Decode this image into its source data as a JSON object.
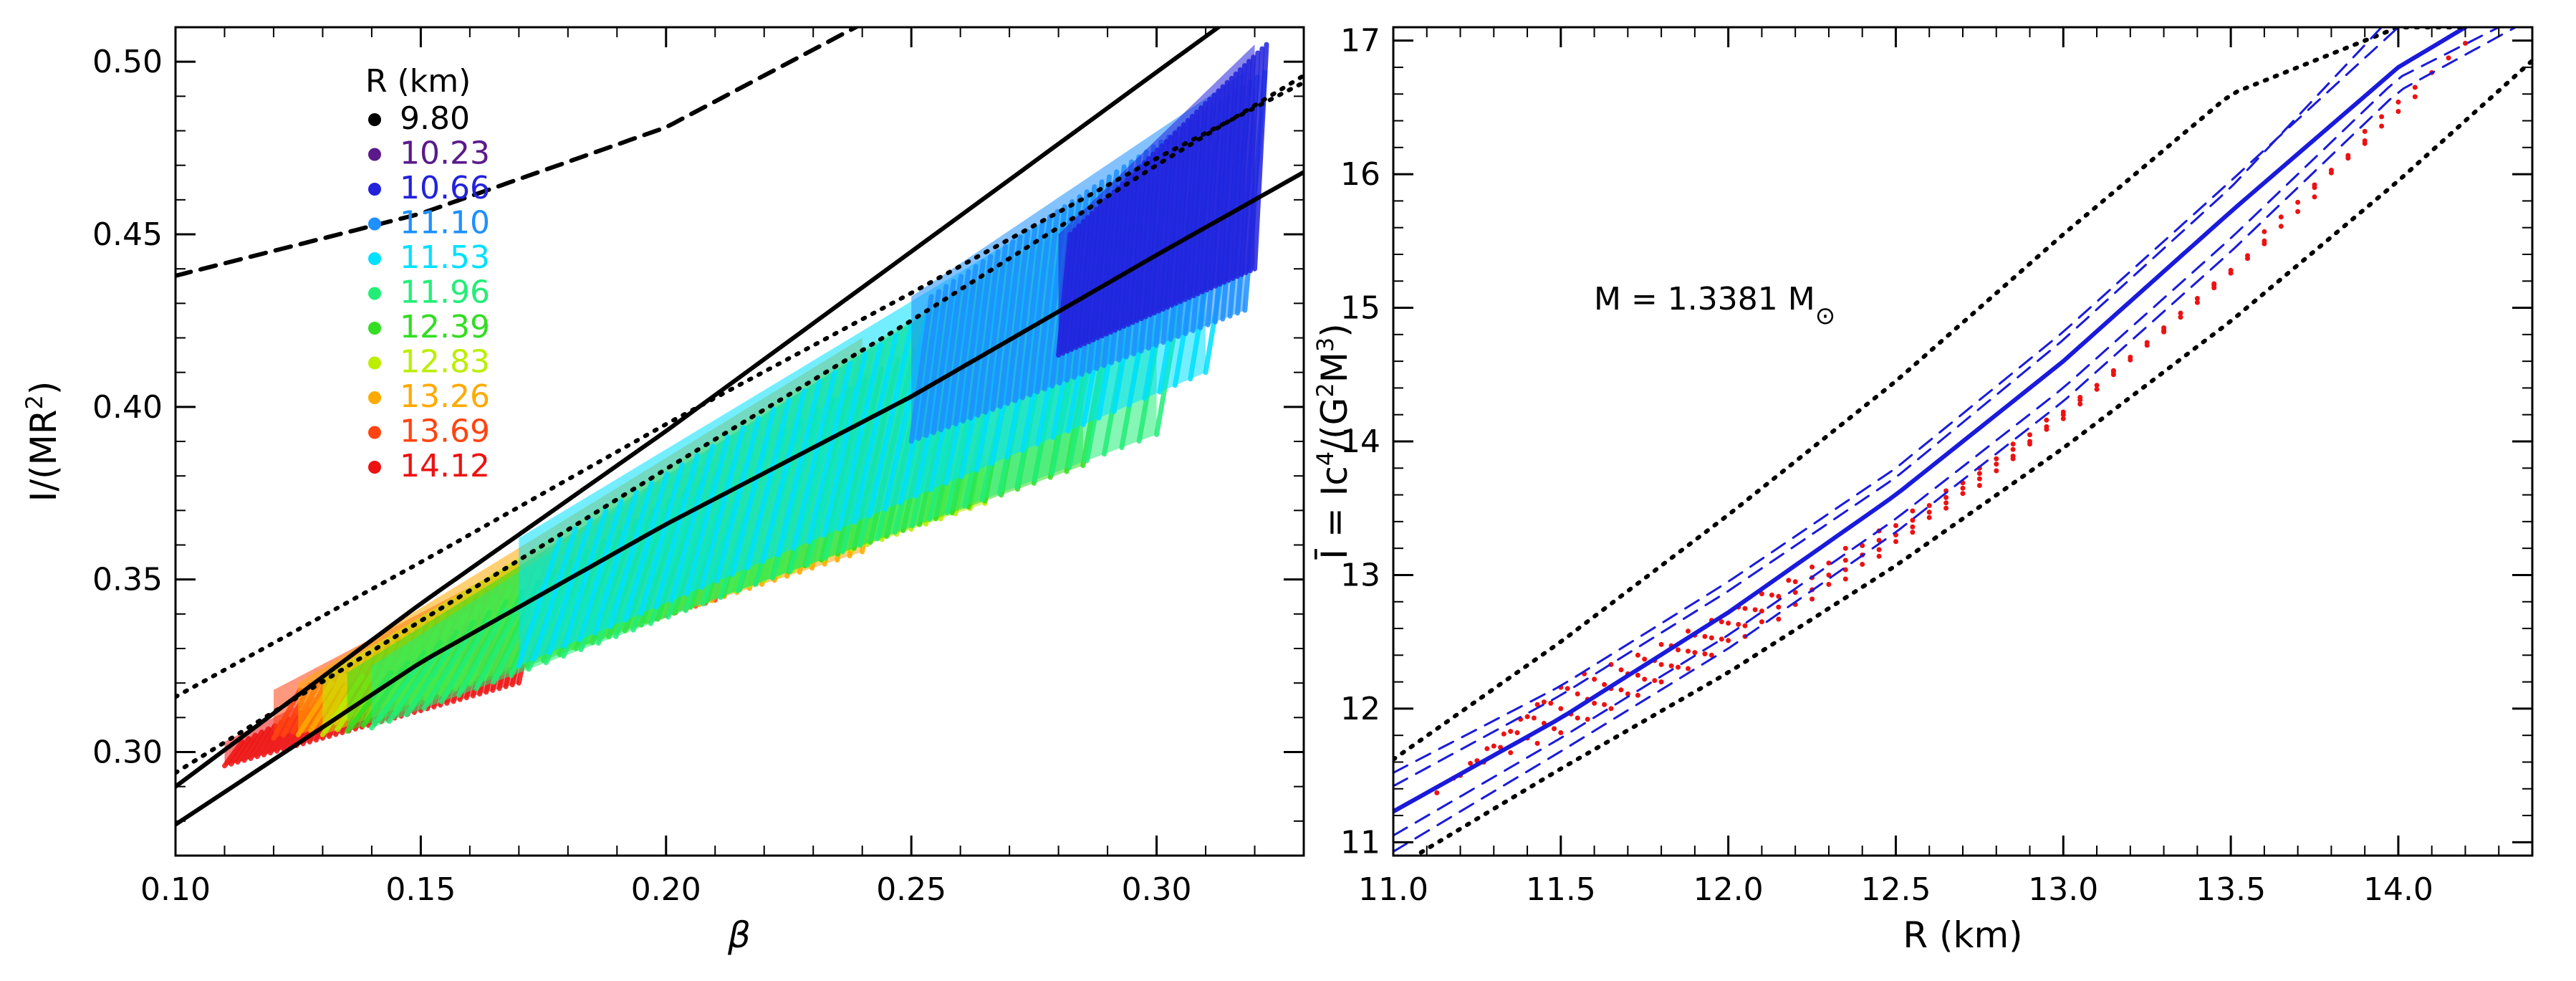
{
  "figure": {
    "label": "figure-two-panel-rotation-relations"
  },
  "chart_data": [
    {
      "type": "scatter",
      "panel": "left",
      "xlabel": "β",
      "ylabel": "I/(MR²)",
      "ylabel_text": "I/(MR",
      "ylabel_sup": "2",
      "ylabel_end": ")",
      "xlim": [
        0.1,
        0.33
      ],
      "ylim": [
        0.27,
        0.51
      ],
      "xticks": [
        0.1,
        0.15,
        0.2,
        0.25,
        0.3
      ],
      "xtick_labels": [
        "0.10",
        "0.15",
        "0.20",
        "0.25",
        "0.30"
      ],
      "yticks": [
        0.3,
        0.35,
        0.4,
        0.45,
        0.5
      ],
      "ytick_labels": [
        "0.30",
        "0.35",
        "0.40",
        "0.45",
        "0.50"
      ],
      "legend": {
        "title": "R (km)",
        "position": "top-left",
        "entries": [
          {
            "label": "9.80",
            "color": "#000000"
          },
          {
            "label": "10.23",
            "color": "#5a1a8c"
          },
          {
            "label": "10.66",
            "color": "#2222dd"
          },
          {
            "label": "11.10",
            "color": "#1e90ff"
          },
          {
            "label": "11.53",
            "color": "#00e0ff"
          },
          {
            "label": "11.96",
            "color": "#22ee77"
          },
          {
            "label": "12.39",
            "color": "#33dd22"
          },
          {
            "label": "12.83",
            "color": "#bbee00"
          },
          {
            "label": "13.26",
            "color": "#ffaa00"
          },
          {
            "label": "13.69",
            "color": "#ff4411"
          },
          {
            "label": "14.12",
            "color": "#ee1111"
          }
        ]
      },
      "curves": [
        {
          "name": "upper-solid-bound",
          "style": "solid",
          "x": [
            0.1,
            0.15,
            0.2,
            0.25,
            0.3,
            0.33
          ],
          "y": [
            0.29,
            0.343,
            0.393,
            0.445,
            0.497,
            0.528
          ]
        },
        {
          "name": "lower-solid-bound",
          "style": "solid",
          "x": [
            0.1,
            0.15,
            0.2,
            0.25,
            0.3,
            0.33
          ],
          "y": [
            0.279,
            0.326,
            0.366,
            0.403,
            0.444,
            0.468
          ]
        },
        {
          "name": "upper-dotted",
          "style": "dotted",
          "x": [
            0.1,
            0.15,
            0.2,
            0.25,
            0.3,
            0.33
          ],
          "y": [
            0.316,
            0.355,
            0.395,
            0.433,
            0.472,
            0.494
          ]
        },
        {
          "name": "lower-dotted",
          "style": "dotted",
          "x": [
            0.1,
            0.15,
            0.2,
            0.25,
            0.3,
            0.33
          ],
          "y": [
            0.294,
            0.338,
            0.382,
            0.425,
            0.47,
            0.496
          ]
        },
        {
          "name": "dashed-curve",
          "style": "dashed",
          "x": [
            0.1,
            0.15,
            0.2,
            0.24
          ],
          "y": [
            0.438,
            0.456,
            0.481,
            0.511
          ]
        }
      ],
      "bands": [
        {
          "color": "#ee1111",
          "x": [
            0.11,
            0.17
          ],
          "lower": [
            0.296,
            0.32
          ],
          "upper": [
            0.303,
            0.345
          ]
        },
        {
          "color": "#ff4411",
          "x": [
            0.12,
            0.21
          ],
          "lower": [
            0.304,
            0.344
          ],
          "upper": [
            0.318,
            0.385
          ]
        },
        {
          "color": "#ffaa00",
          "x": [
            0.125,
            0.24
          ],
          "lower": [
            0.305,
            0.358
          ],
          "upper": [
            0.32,
            0.42
          ]
        },
        {
          "color": "#bbee00",
          "x": [
            0.13,
            0.265
          ],
          "lower": [
            0.305,
            0.372
          ],
          "upper": [
            0.322,
            0.438
          ]
        },
        {
          "color": "#33dd22",
          "x": [
            0.135,
            0.285
          ],
          "lower": [
            0.306,
            0.383
          ],
          "upper": [
            0.323,
            0.455
          ]
        },
        {
          "color": "#22ee77",
          "x": [
            0.14,
            0.3
          ],
          "lower": [
            0.307,
            0.392
          ],
          "upper": [
            0.325,
            0.47
          ]
        },
        {
          "color": "#00e0ff",
          "x": [
            0.17,
            0.31
          ],
          "lower": [
            0.325,
            0.41
          ],
          "upper": [
            0.362,
            0.482
          ]
        },
        {
          "color": "#1e90ff",
          "x": [
            0.25,
            0.318
          ],
          "lower": [
            0.39,
            0.428
          ],
          "upper": [
            0.432,
            0.497
          ]
        },
        {
          "color": "#2222dd",
          "x": [
            0.28,
            0.32
          ],
          "lower": [
            0.415,
            0.44
          ],
          "upper": [
            0.45,
            0.505
          ]
        }
      ]
    },
    {
      "type": "line",
      "panel": "right",
      "xlabel": "R (km)",
      "ylabel": "Ī = Ic⁴/(G²M³)",
      "ylabel_parts": [
        "Ī = Ic",
        "4",
        "/(G",
        "2",
        "M",
        "3",
        ")"
      ],
      "xlim": [
        11.0,
        14.4
      ],
      "ylim": [
        10.9,
        17.1
      ],
      "xticks": [
        11.0,
        11.5,
        12.0,
        12.5,
        13.0,
        13.5,
        14.0
      ],
      "xtick_labels": [
        "11.0",
        "11.5",
        "12.0",
        "12.5",
        "13.0",
        "13.5",
        "14.0"
      ],
      "yticks": [
        11,
        12,
        13,
        14,
        15,
        16,
        17
      ],
      "ytick_labels": [
        "11",
        "12",
        "13",
        "14",
        "15",
        "16",
        "17"
      ],
      "annotation": {
        "text": "M = 1.3381 M",
        "sub": "⊙"
      },
      "series": [
        {
          "name": "central-fit",
          "style": "solid",
          "color": "#1a1adb",
          "x": [
            11.0,
            11.5,
            12.0,
            12.5,
            13.0,
            13.5,
            14.0,
            14.2
          ],
          "y": [
            11.23,
            11.93,
            12.72,
            13.6,
            14.6,
            15.72,
            16.8,
            17.1
          ]
        },
        {
          "name": "upper-dotted",
          "style": "dotted",
          "color": "#000000",
          "x": [
            11.0,
            11.5,
            12.0,
            12.5,
            13.0,
            13.5,
            14.0,
            14.2
          ],
          "y": [
            11.62,
            12.5,
            13.45,
            14.45,
            15.55,
            16.6,
            17.1,
            17.1
          ]
        },
        {
          "name": "lower-dotted",
          "style": "dotted",
          "color": "#000000",
          "x": [
            11.0,
            11.5,
            12.0,
            12.5,
            13.0,
            13.5,
            14.0,
            14.4
          ],
          "y": [
            10.8,
            11.55,
            12.27,
            13.07,
            13.95,
            14.9,
            15.95,
            16.85
          ]
        },
        {
          "name": "upper-dashed-1",
          "style": "dashed",
          "color": "#1a1adb",
          "x": [
            11.0,
            11.5,
            12.0,
            12.5,
            13.0,
            13.5,
            14.0
          ],
          "y": [
            11.52,
            12.17,
            12.95,
            13.8,
            14.82,
            15.95,
            17.1
          ]
        },
        {
          "name": "upper-dashed-2",
          "style": "dashed",
          "color": "#1a1adb",
          "x": [
            11.0,
            11.5,
            12.0,
            12.5,
            13.0,
            13.5,
            13.95
          ],
          "y": [
            11.42,
            12.1,
            12.88,
            13.73,
            14.76,
            15.9,
            17.1
          ]
        },
        {
          "name": "lower-dashed-1",
          "style": "dashed",
          "color": "#1a1adb",
          "x": [
            11.0,
            11.5,
            12.0,
            12.5,
            13.0,
            13.5,
            14.0,
            14.3
          ],
          "y": [
            11.05,
            11.78,
            12.55,
            13.42,
            14.4,
            15.52,
            16.72,
            17.1
          ]
        },
        {
          "name": "lower-dashed-2",
          "style": "dashed",
          "color": "#1a1adb",
          "x": [
            11.0,
            11.5,
            12.0,
            12.5,
            13.0,
            13.5,
            14.0,
            14.35
          ],
          "y": [
            10.93,
            11.68,
            12.45,
            13.32,
            14.3,
            15.42,
            16.62,
            17.1
          ]
        }
      ],
      "scatter": {
        "color": "#ee1111",
        "x": [
          11.28,
          11.35,
          11.42,
          11.5,
          11.58,
          11.65,
          11.73,
          11.8,
          11.88,
          11.95,
          12.03,
          12.1,
          12.2,
          12.3,
          12.4,
          12.5,
          12.6,
          12.7,
          12.8,
          12.9,
          13.0,
          13.15,
          13.3,
          13.45,
          13.6,
          13.75,
          13.9,
          14.05
        ],
        "y": [
          11.75,
          11.88,
          11.98,
          12.05,
          12.12,
          12.2,
          12.3,
          12.38,
          12.48,
          12.58,
          12.68,
          12.78,
          12.92,
          13.05,
          13.2,
          13.35,
          13.52,
          13.7,
          13.88,
          14.05,
          14.25,
          14.55,
          14.9,
          15.2,
          15.55,
          15.95,
          16.3,
          16.7
        ]
      }
    }
  ]
}
